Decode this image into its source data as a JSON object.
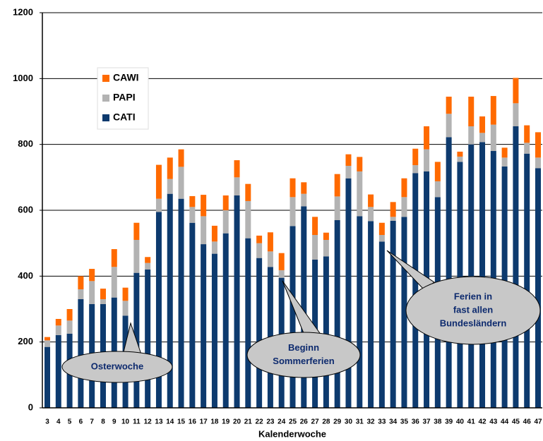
{
  "chart_data": {
    "type": "stacked_bar",
    "x_label": "Kalenderwoche",
    "categories": [
      "3",
      "4",
      "5",
      "6",
      "7",
      "8",
      "9",
      "10",
      "11",
      "12",
      "13",
      "14",
      "15",
      "16",
      "17",
      "18",
      "19",
      "20",
      "21",
      "22",
      "23",
      "24",
      "25",
      "26",
      "27",
      "28",
      "29",
      "30",
      "31",
      "32",
      "33",
      "34",
      "35",
      "36",
      "37",
      "38",
      "39",
      "40",
      "41",
      "42",
      "43",
      "44",
      "45",
      "46",
      "47"
    ],
    "series": [
      {
        "name": "CATI",
        "color": "#0d3a6e",
        "values": [
          185,
          221,
          225,
          330,
          315,
          315,
          335,
          280,
          410,
          420,
          595,
          650,
          635,
          562,
          497,
          468,
          530,
          645,
          515,
          455,
          428,
          395,
          552,
          612,
          450,
          460,
          570,
          697,
          582,
          567,
          505,
          568,
          580,
          713,
          718,
          640,
          822,
          747,
          800,
          807,
          780,
          733,
          855,
          772,
          728
        ]
      },
      {
        "name": "PAPI",
        "color": "#b3b3b3",
        "values": [
          20,
          29,
          40,
          30,
          70,
          15,
          93,
          45,
          100,
          20,
          40,
          45,
          97,
          48,
          85,
          37,
          70,
          55,
          113,
          45,
          47,
          23,
          88,
          38,
          75,
          50,
          72,
          38,
          136,
          43,
          20,
          12,
          60,
          24,
          67,
          48,
          71,
          16,
          55,
          28,
          80,
          27,
          70,
          33,
          32
        ]
      },
      {
        "name": "CAWI",
        "color": "#ff6a00",
        "values": [
          10,
          20,
          35,
          40,
          37,
          32,
          54,
          40,
          52,
          18,
          103,
          65,
          53,
          33,
          65,
          48,
          45,
          52,
          52,
          23,
          58,
          52,
          57,
          35,
          55,
          22,
          68,
          35,
          44,
          38,
          37,
          45,
          57,
          50,
          70,
          59,
          52,
          15,
          90,
          50,
          87,
          30,
          77,
          53,
          77
        ]
      }
    ],
    "ylim": [
      0,
      1200
    ],
    "yticks": [
      0,
      200,
      400,
      600,
      800,
      1000,
      1200
    ],
    "grid": true,
    "legend": "upper left",
    "annotations": [
      {
        "text": [
          "Osterwoche"
        ]
      },
      {
        "text": [
          "Beginn",
          "Sommerferien"
        ]
      },
      {
        "text": [
          "Ferien in",
          "fast allen",
          "Bundesländern"
        ]
      }
    ]
  }
}
